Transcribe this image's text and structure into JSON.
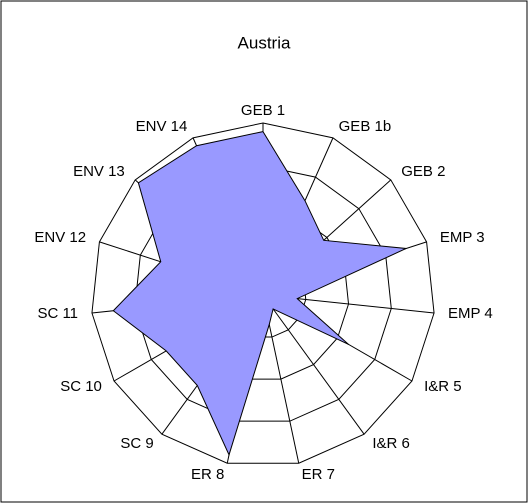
{
  "chart_data": {
    "type": "radar",
    "title": "Austria",
    "categories": [
      "GEB 1",
      "GEB 1b",
      "GEB 2",
      "EMP 3",
      "EMP 4",
      "I&R 5",
      "I&R 6",
      "ER 7",
      "ER 8",
      "SC 9",
      "SC 10",
      "SC 11",
      "ENV 12",
      "ENV 13",
      "ENV 14"
    ],
    "values": [
      3.8,
      2.4,
      1.9,
      3.5,
      0.8,
      2.3,
      0.4,
      0.7,
      3.8,
      2.6,
      2.6,
      3.5,
      2.5,
      3.9,
      3.8
    ],
    "color": "#9999ff",
    "ylim": [
      0,
      4
    ],
    "rings": [
      1,
      2,
      3,
      4
    ]
  }
}
